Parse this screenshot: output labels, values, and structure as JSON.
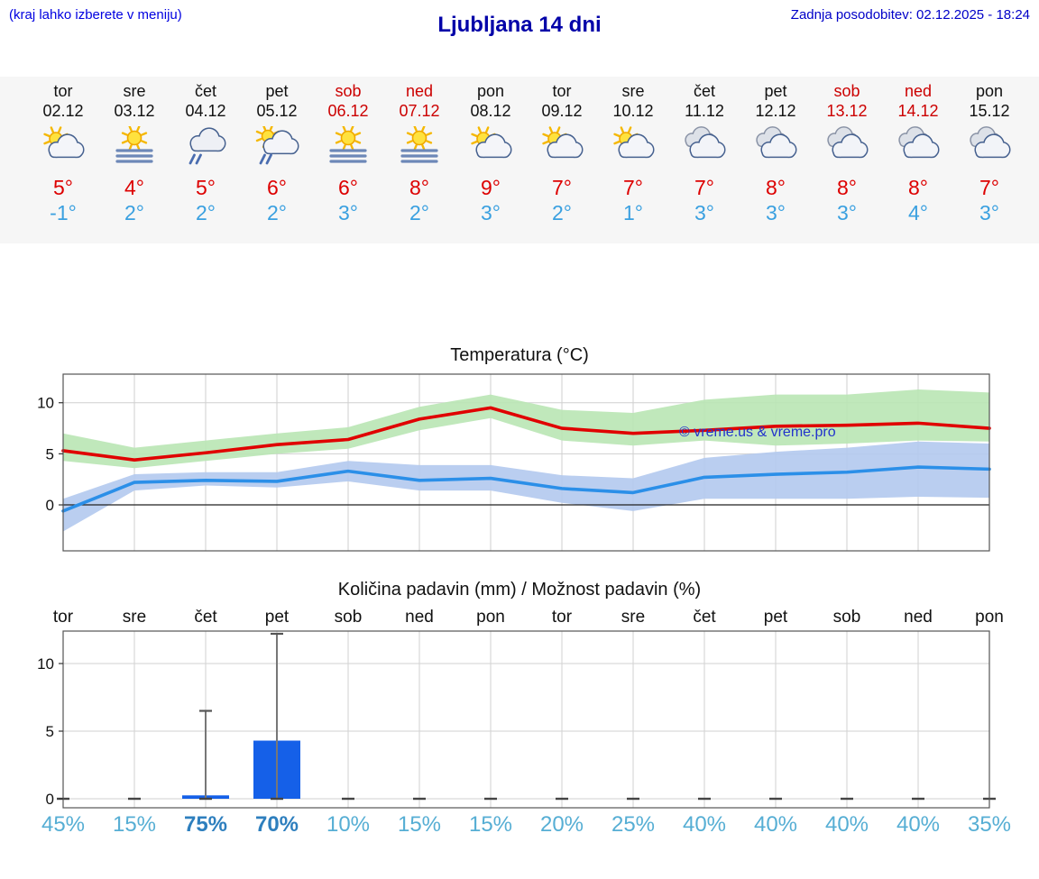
{
  "header": {
    "hint": "(kraj lahko izberete v meniju)",
    "title": "Ljubljana 14 dni",
    "updated": "Zadnja posodobitev: 02.12.2025 - 18:24"
  },
  "colors": {
    "high_temp_red": "#dd0000",
    "low_temp_blue": "#3aa0e0",
    "weekend_red": "#cc0000",
    "header_blue": "#0000a8",
    "percent_blue": "#56aed4",
    "percent_strong_blue": "#2e7fbe"
  },
  "forecast": {
    "days": [
      {
        "name": "tor",
        "date": "02.12",
        "weekend": false,
        "icon": "sun-cloud",
        "high": "5°",
        "low": "-1°"
      },
      {
        "name": "sre",
        "date": "03.12",
        "weekend": false,
        "icon": "sun-fog",
        "high": "4°",
        "low": "2°"
      },
      {
        "name": "čet",
        "date": "04.12",
        "weekend": false,
        "icon": "cloud-rain",
        "high": "5°",
        "low": "2°"
      },
      {
        "name": "pet",
        "date": "05.12",
        "weekend": false,
        "icon": "sun-cloud-rain",
        "high": "6°",
        "low": "2°"
      },
      {
        "name": "sob",
        "date": "06.12",
        "weekend": true,
        "icon": "sun-fog",
        "high": "6°",
        "low": "3°"
      },
      {
        "name": "ned",
        "date": "07.12",
        "weekend": true,
        "icon": "sun-fog",
        "high": "8°",
        "low": "2°"
      },
      {
        "name": "pon",
        "date": "08.12",
        "weekend": false,
        "icon": "sun-cloud",
        "high": "9°",
        "low": "3°"
      },
      {
        "name": "tor",
        "date": "09.12",
        "weekend": false,
        "icon": "sun-cloud",
        "high": "7°",
        "low": "2°"
      },
      {
        "name": "sre",
        "date": "10.12",
        "weekend": false,
        "icon": "sun-cloud",
        "high": "7°",
        "low": "1°"
      },
      {
        "name": "čet",
        "date": "11.12",
        "weekend": false,
        "icon": "cloudy",
        "high": "7°",
        "low": "3°"
      },
      {
        "name": "pet",
        "date": "12.12",
        "weekend": false,
        "icon": "cloudy",
        "high": "8°",
        "low": "3°"
      },
      {
        "name": "sob",
        "date": "13.12",
        "weekend": true,
        "icon": "cloudy",
        "high": "8°",
        "low": "3°"
      },
      {
        "name": "ned",
        "date": "14.12",
        "weekend": true,
        "icon": "cloudy",
        "high": "8°",
        "low": "4°"
      },
      {
        "name": "pon",
        "date": "15.12",
        "weekend": false,
        "icon": "cloudy",
        "high": "7°",
        "low": "3°"
      }
    ]
  },
  "chart_data": [
    {
      "type": "line",
      "title": "Temperatura (°C)",
      "categories": [
        "tor",
        "sre",
        "čet",
        "pet",
        "sob",
        "ned",
        "pon",
        "tor",
        "sre",
        "čet",
        "pet",
        "sob",
        "ned",
        "pon"
      ],
      "series": [
        {
          "name": "max temperature",
          "color": "#e00000",
          "band_color": "#b9e6b4",
          "values": [
            5.3,
            4.4,
            5.1,
            5.9,
            6.4,
            8.4,
            9.5,
            7.5,
            7.0,
            7.3,
            7.7,
            7.8,
            8.0,
            7.5
          ],
          "band_upper": [
            7.0,
            5.6,
            6.3,
            7.0,
            7.6,
            9.6,
            10.8,
            9.3,
            9.0,
            10.3,
            10.8,
            10.8,
            11.3,
            11.0
          ],
          "band_lower": [
            4.3,
            3.6,
            4.3,
            5.0,
            5.5,
            7.3,
            8.5,
            6.3,
            5.8,
            6.3,
            5.8,
            6.0,
            6.3,
            6.2
          ]
        },
        {
          "name": "min temperature",
          "color": "#2b8fe8",
          "band_color": "#b3c9ee",
          "values": [
            -0.6,
            2.2,
            2.4,
            2.3,
            3.3,
            2.4,
            2.6,
            1.6,
            1.2,
            2.7,
            3.0,
            3.2,
            3.7,
            3.5
          ],
          "band_upper": [
            0.6,
            3.0,
            3.2,
            3.2,
            4.3,
            3.9,
            3.9,
            2.9,
            2.6,
            4.6,
            5.2,
            5.6,
            6.2,
            6.0
          ],
          "band_lower": [
            -2.6,
            1.4,
            1.9,
            1.7,
            2.3,
            1.4,
            1.4,
            0.2,
            -0.6,
            0.6,
            0.6,
            0.6,
            0.8,
            0.7
          ]
        }
      ],
      "ylim": [
        -4.5,
        12.8
      ],
      "yticks": [
        0,
        5,
        10
      ],
      "grid": true,
      "watermark": "© vreme.us & vreme.pro"
    },
    {
      "type": "bar",
      "title": "Količina padavin (mm) / Možnost padavin (%)",
      "categories": [
        "tor",
        "sre",
        "čet",
        "pet",
        "sob",
        "ned",
        "pon",
        "tor",
        "sre",
        "čet",
        "pet",
        "sob",
        "ned",
        "pon"
      ],
      "values": [
        0,
        0,
        0.25,
        4.3,
        0,
        0,
        0,
        0,
        0,
        0,
        0,
        0,
        0,
        0
      ],
      "whisker_max": [
        0,
        0,
        6.5,
        12.2,
        0,
        0,
        0,
        0,
        0,
        0,
        0,
        0,
        0,
        0
      ],
      "probabilities": [
        {
          "label": "45%",
          "strong": false
        },
        {
          "label": "15%",
          "strong": false
        },
        {
          "label": "75%",
          "strong": true
        },
        {
          "label": "70%",
          "strong": true
        },
        {
          "label": "10%",
          "strong": false
        },
        {
          "label": "15%",
          "strong": false
        },
        {
          "label": "15%",
          "strong": false
        },
        {
          "label": "20%",
          "strong": false
        },
        {
          "label": "25%",
          "strong": false
        },
        {
          "label": "40%",
          "strong": false
        },
        {
          "label": "40%",
          "strong": false
        },
        {
          "label": "40%",
          "strong": false
        },
        {
          "label": "40%",
          "strong": false
        },
        {
          "label": "35%",
          "strong": false
        }
      ],
      "ylim": [
        0,
        13
      ],
      "yticks": [
        0,
        5,
        10
      ],
      "bar_color": "#1560e8",
      "grid": true
    }
  ]
}
